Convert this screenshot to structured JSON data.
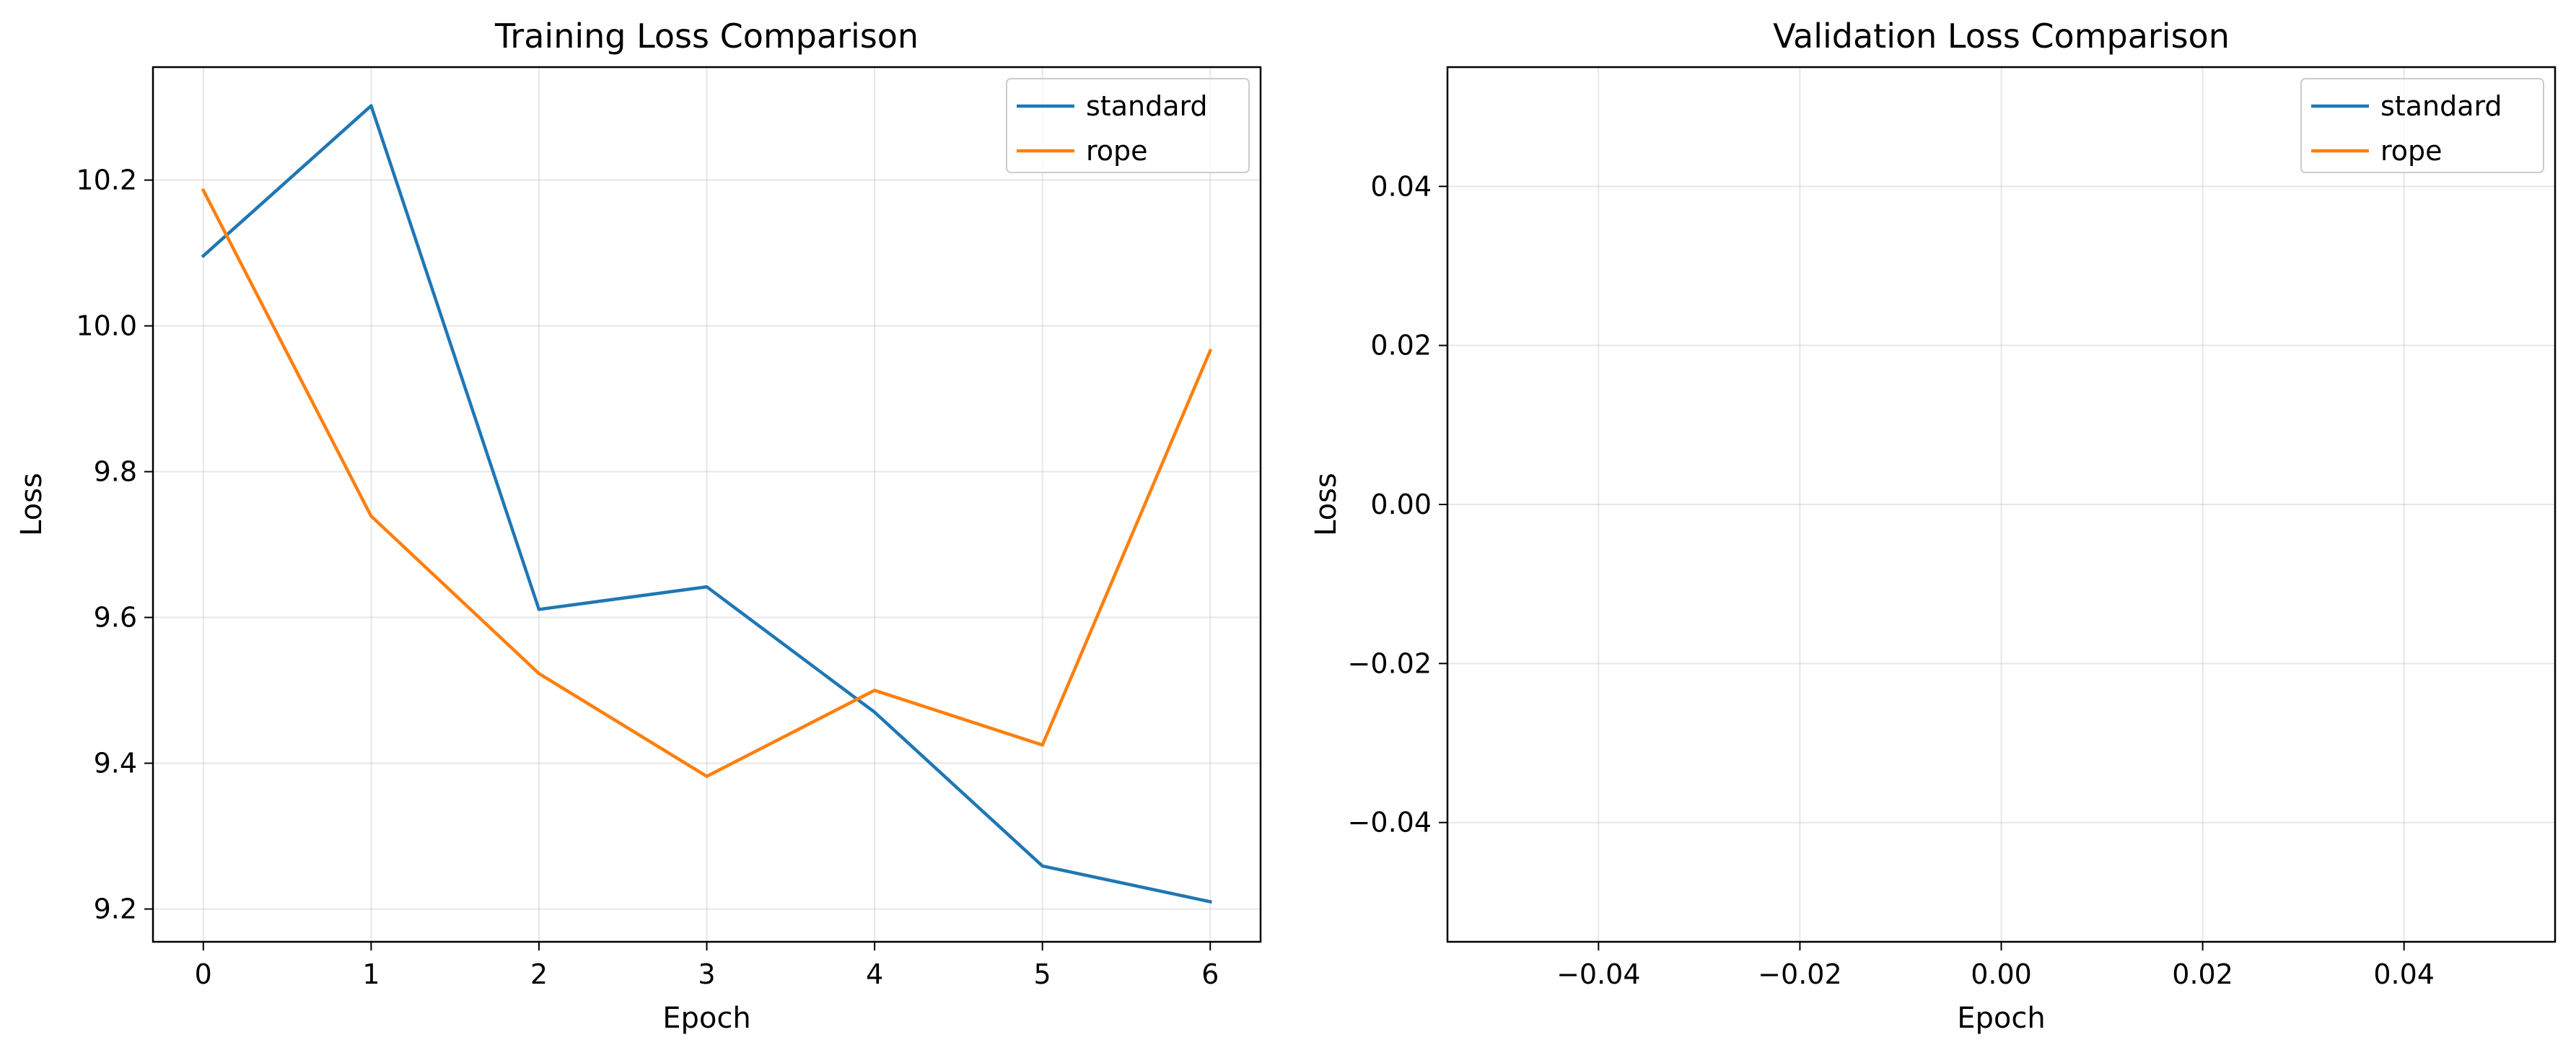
{
  "chart_data": [
    {
      "type": "line",
      "title": "Training Loss Comparison",
      "xlabel": "Epoch",
      "ylabel": "Loss",
      "x": [
        0,
        1,
        2,
        3,
        4,
        5,
        6
      ],
      "xlim": [
        -0.3,
        6.3
      ],
      "ylim": [
        9.155,
        10.355
      ],
      "xticks": [
        0,
        1,
        2,
        3,
        4,
        5,
        6
      ],
      "xtick_labels": [
        "0",
        "1",
        "2",
        "3",
        "4",
        "5",
        "6"
      ],
      "yticks": [
        9.2,
        9.4,
        9.6,
        9.8,
        10.0,
        10.2
      ],
      "ytick_labels": [
        "9.2",
        "9.4",
        "9.6",
        "9.8",
        "10.0",
        "10.2"
      ],
      "grid": true,
      "legend_position": "top-right",
      "series": [
        {
          "name": "standard",
          "color": "#1f77b4",
          "values": [
            10.096,
            10.302,
            9.611,
            9.642,
            9.47,
            9.259,
            9.21
          ]
        },
        {
          "name": "rope",
          "color": "#ff7f0e",
          "values": [
            10.186,
            9.739,
            9.523,
            9.382,
            9.5,
            9.425,
            9.966
          ]
        }
      ]
    },
    {
      "type": "line",
      "title": "Validation Loss Comparison",
      "xlabel": "Epoch",
      "ylabel": "Loss",
      "x": [],
      "xlim": [
        -0.055,
        0.055
      ],
      "ylim": [
        -0.055,
        0.055
      ],
      "xticks": [
        -0.04,
        -0.02,
        0.0,
        0.02,
        0.04
      ],
      "xtick_labels": [
        "−0.04",
        "−0.02",
        "0.00",
        "0.02",
        "0.04"
      ],
      "yticks": [
        -0.04,
        -0.02,
        0.0,
        0.02,
        0.04
      ],
      "ytick_labels": [
        "−0.04",
        "−0.02",
        "0.00",
        "0.02",
        "0.04"
      ],
      "grid": true,
      "legend_position": "top-right",
      "series": [
        {
          "name": "standard",
          "color": "#1f77b4",
          "values": []
        },
        {
          "name": "rope",
          "color": "#ff7f0e",
          "values": []
        }
      ]
    }
  ]
}
